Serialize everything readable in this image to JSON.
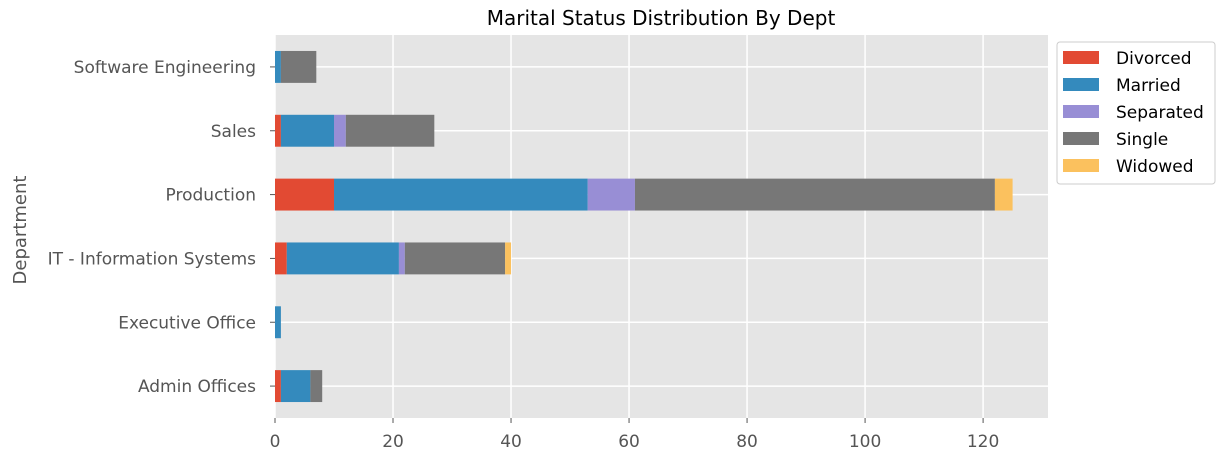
{
  "chart_data": {
    "type": "bar",
    "orientation": "horizontal",
    "stacked": true,
    "title": "Marital Status Distribution By Dept",
    "ylabel": "Department",
    "xlabel": "",
    "xlim": [
      0,
      131
    ],
    "xticks": [
      0,
      20,
      40,
      60,
      80,
      100,
      120
    ],
    "grid": true,
    "legend_position": "outside-top-right",
    "categories": [
      "Admin Offices",
      "Executive Office",
      "IT - Information Systems",
      "Production       ",
      "Sales",
      "Software Engineering"
    ],
    "series": [
      {
        "name": "Divorced",
        "color": "#E24A33",
        "values": [
          1,
          0,
          2,
          10,
          1,
          0
        ]
      },
      {
        "name": "Married",
        "color": "#348ABD",
        "values": [
          5,
          1,
          19,
          43,
          9,
          1
        ]
      },
      {
        "name": "Separated",
        "color": "#988ED5",
        "values": [
          0,
          0,
          1,
          8,
          2,
          0
        ]
      },
      {
        "name": "Single",
        "color": "#777777",
        "values": [
          2,
          0,
          17,
          61,
          15,
          6
        ]
      },
      {
        "name": "Widowed",
        "color": "#FBC15E",
        "values": [
          0,
          0,
          1,
          3,
          0,
          0
        ]
      }
    ]
  },
  "colors": {
    "plot_background": "#E5E5E5",
    "grid": "#FFFFFF",
    "tick_text": "#555555"
  }
}
